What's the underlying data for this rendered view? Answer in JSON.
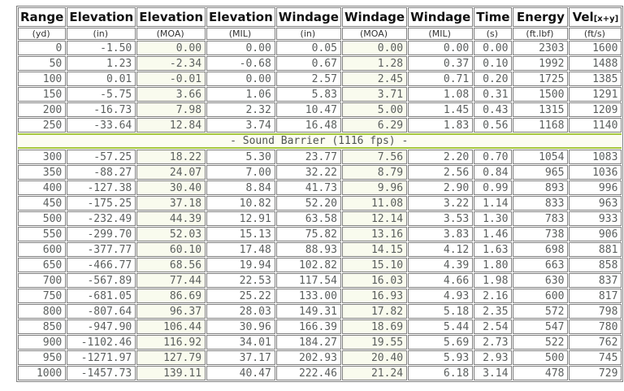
{
  "table": {
    "title_semantic": "ballistics-trajectory-table",
    "columns": [
      {
        "label": "Range",
        "unit": "(yd)"
      },
      {
        "label": "Elevation",
        "unit": "(in)"
      },
      {
        "label": "Elevation",
        "unit": "(MOA)"
      },
      {
        "label": "Elevation",
        "unit": "(MIL)"
      },
      {
        "label": "Windage",
        "unit": "(in)"
      },
      {
        "label": "Windage",
        "unit": "(MOA)"
      },
      {
        "label": "Windage",
        "unit": "(MIL)"
      },
      {
        "label": "Time",
        "unit": "(s)"
      },
      {
        "label": "Energy",
        "unit": "(ft.lbf)"
      },
      {
        "label": "Vel",
        "label_sub": "[x+y]",
        "unit": "(ft/s)"
      }
    ],
    "tinted_column_indexes": [
      2,
      5
    ],
    "pre_barrier_rows": [
      [
        "0",
        "-1.50",
        "0.00",
        "0.00",
        "0.05",
        "0.00",
        "0.00",
        "0.00",
        "2303",
        "1600"
      ],
      [
        "50",
        "1.23",
        "-2.34",
        "-0.68",
        "0.67",
        "1.28",
        "0.37",
        "0.10",
        "1992",
        "1488"
      ],
      [
        "100",
        "0.01",
        "-0.01",
        "0.00",
        "2.57",
        "2.45",
        "0.71",
        "0.20",
        "1725",
        "1385"
      ],
      [
        "150",
        "-5.75",
        "3.66",
        "1.06",
        "5.83",
        "3.71",
        "1.08",
        "0.31",
        "1500",
        "1291"
      ],
      [
        "200",
        "-16.73",
        "7.98",
        "2.32",
        "10.47",
        "5.00",
        "1.45",
        "0.43",
        "1315",
        "1209"
      ],
      [
        "250",
        "-33.64",
        "12.84",
        "3.74",
        "16.48",
        "6.29",
        "1.83",
        "0.56",
        "1168",
        "1140"
      ]
    ],
    "barrier_label": "- Sound Barrier (1116 fps) -",
    "post_barrier_rows": [
      [
        "300",
        "-57.25",
        "18.22",
        "5.30",
        "23.77",
        "7.56",
        "2.20",
        "0.70",
        "1054",
        "1083"
      ],
      [
        "350",
        "-88.27",
        "24.07",
        "7.00",
        "32.22",
        "8.79",
        "2.56",
        "0.84",
        "965",
        "1036"
      ],
      [
        "400",
        "-127.38",
        "30.40",
        "8.84",
        "41.73",
        "9.96",
        "2.90",
        "0.99",
        "893",
        "996"
      ],
      [
        "450",
        "-175.25",
        "37.18",
        "10.82",
        "52.20",
        "11.08",
        "3.22",
        "1.14",
        "833",
        "963"
      ],
      [
        "500",
        "-232.49",
        "44.39",
        "12.91",
        "63.58",
        "12.14",
        "3.53",
        "1.30",
        "783",
        "933"
      ],
      [
        "550",
        "-299.70",
        "52.03",
        "15.13",
        "75.82",
        "13.16",
        "3.83",
        "1.46",
        "738",
        "906"
      ],
      [
        "600",
        "-377.77",
        "60.10",
        "17.48",
        "88.93",
        "14.15",
        "4.12",
        "1.63",
        "698",
        "881"
      ],
      [
        "650",
        "-466.77",
        "68.56",
        "19.94",
        "102.82",
        "15.10",
        "4.39",
        "1.80",
        "663",
        "858"
      ],
      [
        "700",
        "-567.89",
        "77.44",
        "22.53",
        "117.54",
        "16.03",
        "4.66",
        "1.98",
        "630",
        "837"
      ],
      [
        "750",
        "-681.05",
        "86.69",
        "25.22",
        "133.00",
        "16.93",
        "4.93",
        "2.16",
        "600",
        "817"
      ],
      [
        "800",
        "-807.64",
        "96.37",
        "28.03",
        "149.31",
        "17.82",
        "5.18",
        "2.35",
        "572",
        "798"
      ],
      [
        "850",
        "-947.90",
        "106.44",
        "30.96",
        "166.39",
        "18.69",
        "5.44",
        "2.54",
        "547",
        "780"
      ],
      [
        "900",
        "-1102.46",
        "116.92",
        "34.01",
        "184.27",
        "19.55",
        "5.69",
        "2.73",
        "522",
        "762"
      ],
      [
        "950",
        "-1271.97",
        "127.79",
        "37.17",
        "202.93",
        "20.40",
        "5.93",
        "2.93",
        "500",
        "745"
      ],
      [
        "1000",
        "-1457.73",
        "139.11",
        "40.47",
        "222.46",
        "21.24",
        "6.18",
        "3.14",
        "478",
        "729"
      ]
    ],
    "colors": {
      "header_text": "#111111",
      "data_text": "#5b5f5e",
      "grid_border": "#7f7f7f",
      "moa_column_tint": "#f9fbee",
      "barrier_line": "#a6c73e",
      "barrier_background": "#fcfdf2"
    }
  }
}
